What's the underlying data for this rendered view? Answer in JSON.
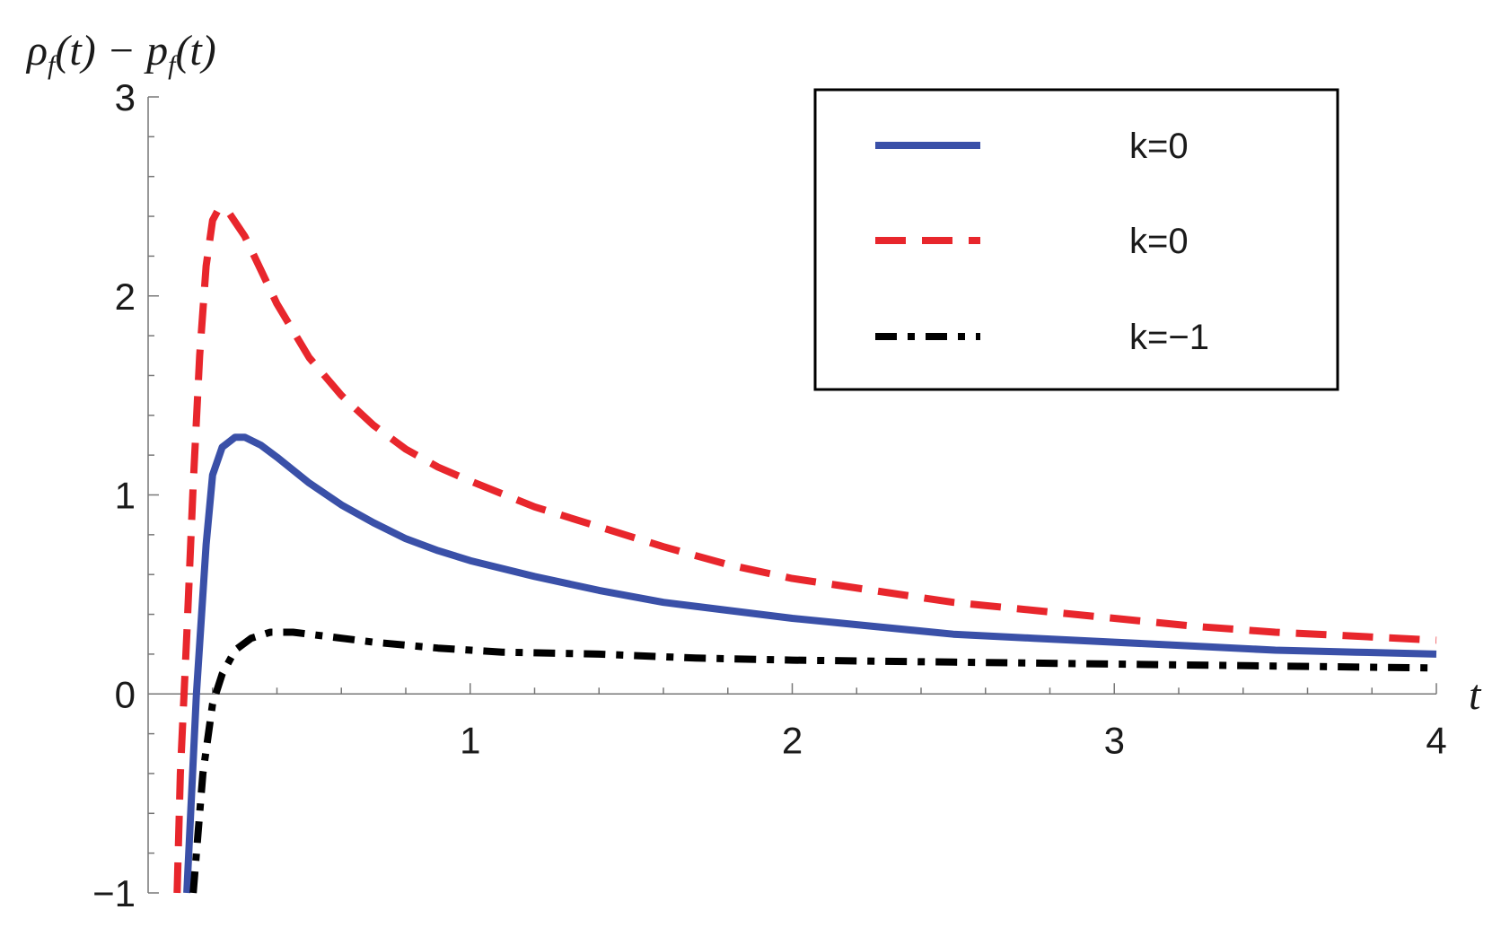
{
  "chart_data": {
    "type": "line",
    "xlabel": "t",
    "ylabel": "ρ_f(t) − p_f(t)",
    "ylabel_parts": {
      "rho": "ρ",
      "f": "f",
      "t1": "(t) − ",
      "p": "p",
      "f2": "f",
      "t2": "(t)"
    },
    "xlim": [
      0,
      4
    ],
    "ylim": [
      -1,
      3
    ],
    "x_ticks": [
      1,
      2,
      3,
      4
    ],
    "x_tick_labels": [
      "1",
      "2",
      "3",
      "4"
    ],
    "y_ticks": [
      -1,
      0,
      1,
      2,
      3
    ],
    "y_tick_labels": [
      "−1",
      "0",
      "1",
      "2",
      "3"
    ],
    "grid": false,
    "legend_position": "top-right",
    "series": [
      {
        "name": "k=0",
        "color": "#3a50a8",
        "style": "solid",
        "points": [
          [
            0.12,
            -1.0
          ],
          [
            0.15,
            0.0
          ],
          [
            0.18,
            0.75
          ],
          [
            0.2,
            1.1
          ],
          [
            0.23,
            1.24
          ],
          [
            0.27,
            1.29
          ],
          [
            0.3,
            1.29
          ],
          [
            0.35,
            1.25
          ],
          [
            0.4,
            1.19
          ],
          [
            0.5,
            1.06
          ],
          [
            0.6,
            0.95
          ],
          [
            0.7,
            0.86
          ],
          [
            0.8,
            0.78
          ],
          [
            0.9,
            0.72
          ],
          [
            1.0,
            0.67
          ],
          [
            1.2,
            0.59
          ],
          [
            1.4,
            0.52
          ],
          [
            1.6,
            0.46
          ],
          [
            1.8,
            0.42
          ],
          [
            2.0,
            0.38
          ],
          [
            2.25,
            0.34
          ],
          [
            2.5,
            0.3
          ],
          [
            2.75,
            0.28
          ],
          [
            3.0,
            0.26
          ],
          [
            3.25,
            0.24
          ],
          [
            3.5,
            0.22
          ],
          [
            3.75,
            0.21
          ],
          [
            4.0,
            0.2
          ]
        ]
      },
      {
        "name": "k=0",
        "color": "#e8262c",
        "style": "dashed",
        "points": [
          [
            0.09,
            -1.0
          ],
          [
            0.1,
            -0.4
          ],
          [
            0.12,
            0.3
          ],
          [
            0.14,
            1.05
          ],
          [
            0.16,
            1.7
          ],
          [
            0.18,
            2.15
          ],
          [
            0.2,
            2.38
          ],
          [
            0.22,
            2.44
          ],
          [
            0.25,
            2.42
          ],
          [
            0.3,
            2.3
          ],
          [
            0.35,
            2.13
          ],
          [
            0.4,
            1.96
          ],
          [
            0.5,
            1.69
          ],
          [
            0.6,
            1.5
          ],
          [
            0.7,
            1.35
          ],
          [
            0.8,
            1.23
          ],
          [
            0.9,
            1.14
          ],
          [
            1.0,
            1.07
          ],
          [
            1.2,
            0.94
          ],
          [
            1.4,
            0.84
          ],
          [
            1.6,
            0.74
          ],
          [
            1.8,
            0.65
          ],
          [
            2.0,
            0.58
          ],
          [
            2.25,
            0.52
          ],
          [
            2.5,
            0.46
          ],
          [
            2.75,
            0.42
          ],
          [
            3.0,
            0.38
          ],
          [
            3.25,
            0.34
          ],
          [
            3.5,
            0.31
          ],
          [
            3.75,
            0.29
          ],
          [
            4.0,
            0.27
          ]
        ]
      },
      {
        "name": "k=−1",
        "color": "#000000",
        "style": "dashdot",
        "points": [
          [
            0.14,
            -1.0
          ],
          [
            0.17,
            -0.4
          ],
          [
            0.2,
            -0.05
          ],
          [
            0.23,
            0.1
          ],
          [
            0.27,
            0.22
          ],
          [
            0.32,
            0.28
          ],
          [
            0.38,
            0.31
          ],
          [
            0.45,
            0.31
          ],
          [
            0.55,
            0.29
          ],
          [
            0.7,
            0.26
          ],
          [
            0.9,
            0.23
          ],
          [
            1.1,
            0.21
          ],
          [
            1.4,
            0.2
          ],
          [
            1.7,
            0.18
          ],
          [
            2.0,
            0.17
          ],
          [
            2.5,
            0.16
          ],
          [
            3.0,
            0.15
          ],
          [
            3.5,
            0.14
          ],
          [
            4.0,
            0.13
          ]
        ]
      }
    ]
  }
}
